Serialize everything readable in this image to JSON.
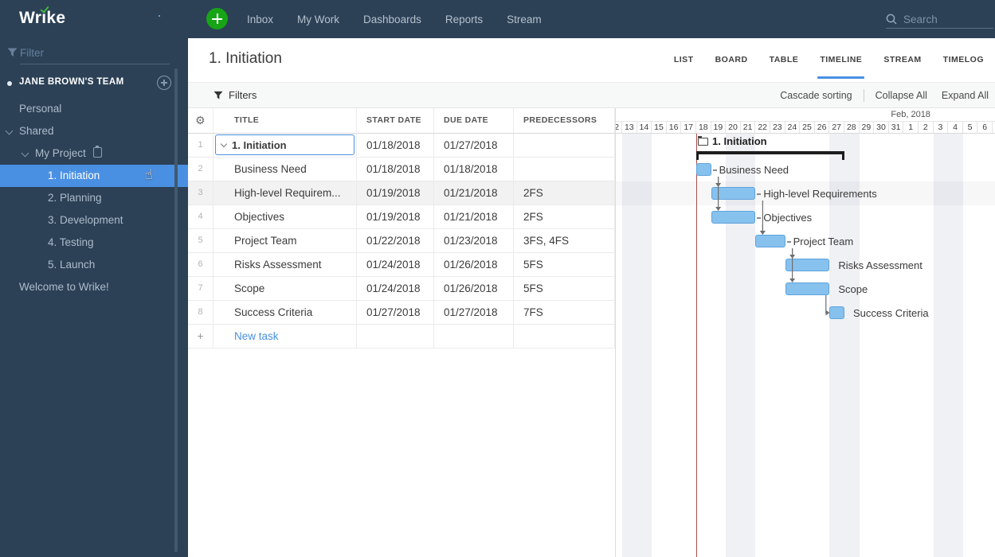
{
  "icons": {
    "gear": "⚙",
    "cursor": "☝",
    "plus": "+"
  },
  "topnav": {
    "logo": "Wrike",
    "items": [
      "Inbox",
      "My Work",
      "Dashboards",
      "Reports",
      "Stream"
    ],
    "search_placeholder": "Search"
  },
  "sidebar": {
    "filter_placeholder": "Filter",
    "team_label": "JANE BROWN'S TEAM",
    "items": [
      {
        "label": "Personal",
        "indent": 0
      },
      {
        "label": "Shared",
        "indent": 0,
        "chevron": true
      },
      {
        "label": "My Project",
        "indent": 1,
        "chevron": true,
        "icon": "clipboard"
      },
      {
        "label": "1. Initiation",
        "indent": 2,
        "selected": true
      },
      {
        "label": "2. Planning",
        "indent": 2
      },
      {
        "label": "3. Development",
        "indent": 2
      },
      {
        "label": "4. Testing",
        "indent": 2
      },
      {
        "label": "5. Launch",
        "indent": 2
      },
      {
        "label": "Welcome to Wrike!",
        "indent": 0
      }
    ]
  },
  "header": {
    "title": "1. Initiation",
    "tabs": [
      {
        "label": "LIST"
      },
      {
        "label": "BOARD"
      },
      {
        "label": "TABLE"
      },
      {
        "label": "TIMELINE",
        "active": true
      },
      {
        "label": "STREAM"
      },
      {
        "label": "TIMELOG"
      }
    ]
  },
  "toolbar": {
    "filters_label": "Filters",
    "cascade_label": "Cascade sorting",
    "collapse_label": "Collapse All",
    "expand_label": "Expand All"
  },
  "table": {
    "columns": [
      "TITLE",
      "START DATE",
      "DUE DATE",
      "PREDECESSORS"
    ],
    "rows": [
      {
        "num": "1",
        "title": "1. Initiation",
        "start": "01/18/2018",
        "due": "01/27/2018",
        "pred": "",
        "level": 0,
        "bold": true,
        "selected": true,
        "chevron": true
      },
      {
        "num": "2",
        "title": "Business Need",
        "start": "01/18/2018",
        "due": "01/18/2018",
        "pred": ""
      },
      {
        "num": "3",
        "title": "High-level Requirem...",
        "start": "01/19/2018",
        "due": "01/21/2018",
        "pred": "2FS",
        "highlight": true
      },
      {
        "num": "4",
        "title": "Objectives",
        "start": "01/19/2018",
        "due": "01/21/2018",
        "pred": "2FS"
      },
      {
        "num": "5",
        "title": "Project Team",
        "start": "01/22/2018",
        "due": "01/23/2018",
        "pred": "3FS, 4FS"
      },
      {
        "num": "6",
        "title": "Risks Assessment",
        "start": "01/24/2018",
        "due": "01/26/2018",
        "pred": "5FS"
      },
      {
        "num": "7",
        "title": "Scope",
        "start": "01/24/2018",
        "due": "01/26/2018",
        "pred": "5FS"
      },
      {
        "num": "8",
        "title": "Success Criteria",
        "start": "01/27/2018",
        "due": "01/27/2018",
        "pred": "7FS"
      }
    ],
    "new_task_label": "New task"
  },
  "chart_data": {
    "type": "gantt",
    "title": "1. Initiation timeline",
    "timeline": {
      "first_visible_day": "01/12/2018",
      "last_visible_day": "02/07/2018",
      "month_label": "Feb, 2018",
      "month_start": "02/01/2018",
      "weekend_days": [
        "01/13/2018",
        "01/14/2018",
        "01/20/2018",
        "01/21/2018",
        "01/27/2018",
        "01/28/2018",
        "02/03/2018",
        "02/04/2018"
      ],
      "today_marker": "01/18/2018"
    },
    "tasks": [
      {
        "row": 1,
        "name": "1. Initiation",
        "start": "01/18/2018",
        "end": "01/27/2018",
        "summary": true
      },
      {
        "row": 2,
        "name": "Business Need",
        "start": "01/18/2018",
        "end": "01/18/2018",
        "connector": true
      },
      {
        "row": 3,
        "name": "High-level Requirements",
        "start": "01/19/2018",
        "end": "01/21/2018",
        "connector": true
      },
      {
        "row": 4,
        "name": "Objectives",
        "start": "01/19/2018",
        "end": "01/21/2018",
        "connector": true
      },
      {
        "row": 5,
        "name": "Project Team",
        "start": "01/22/2018",
        "end": "01/23/2018",
        "connector": true
      },
      {
        "row": 6,
        "name": "Risks Assessment",
        "start": "01/24/2018",
        "end": "01/26/2018",
        "connector": false
      },
      {
        "row": 7,
        "name": "Scope",
        "start": "01/24/2018",
        "end": "01/26/2018",
        "connector": false
      },
      {
        "row": 8,
        "name": "Success Criteria",
        "start": "01/27/2018",
        "end": "01/27/2018",
        "connector": false
      }
    ],
    "dependencies": [
      {
        "from": 2,
        "to": 3,
        "type": "FS"
      },
      {
        "from": 2,
        "to": 4,
        "type": "FS"
      },
      {
        "from": 3,
        "to": 5,
        "type": "FS"
      },
      {
        "from": 4,
        "to": 5,
        "type": "FS"
      },
      {
        "from": 5,
        "to": 6,
        "type": "FS"
      },
      {
        "from": 5,
        "to": 7,
        "type": "FS"
      },
      {
        "from": 7,
        "to": 8,
        "type": "FS",
        "style": "elbow"
      }
    ],
    "highlight_row": 3,
    "colors": {
      "bar_fill": "#87c1ee",
      "bar_border": "#5fa4dc",
      "summary_bracket": "#1d1d1d",
      "today_line": "#9b3c3c",
      "weekend_stripe": "#eff1f5",
      "arrow": "#6e6e6e",
      "selection_blue": "#4a90e2",
      "nav_background": "#2c4156"
    }
  }
}
